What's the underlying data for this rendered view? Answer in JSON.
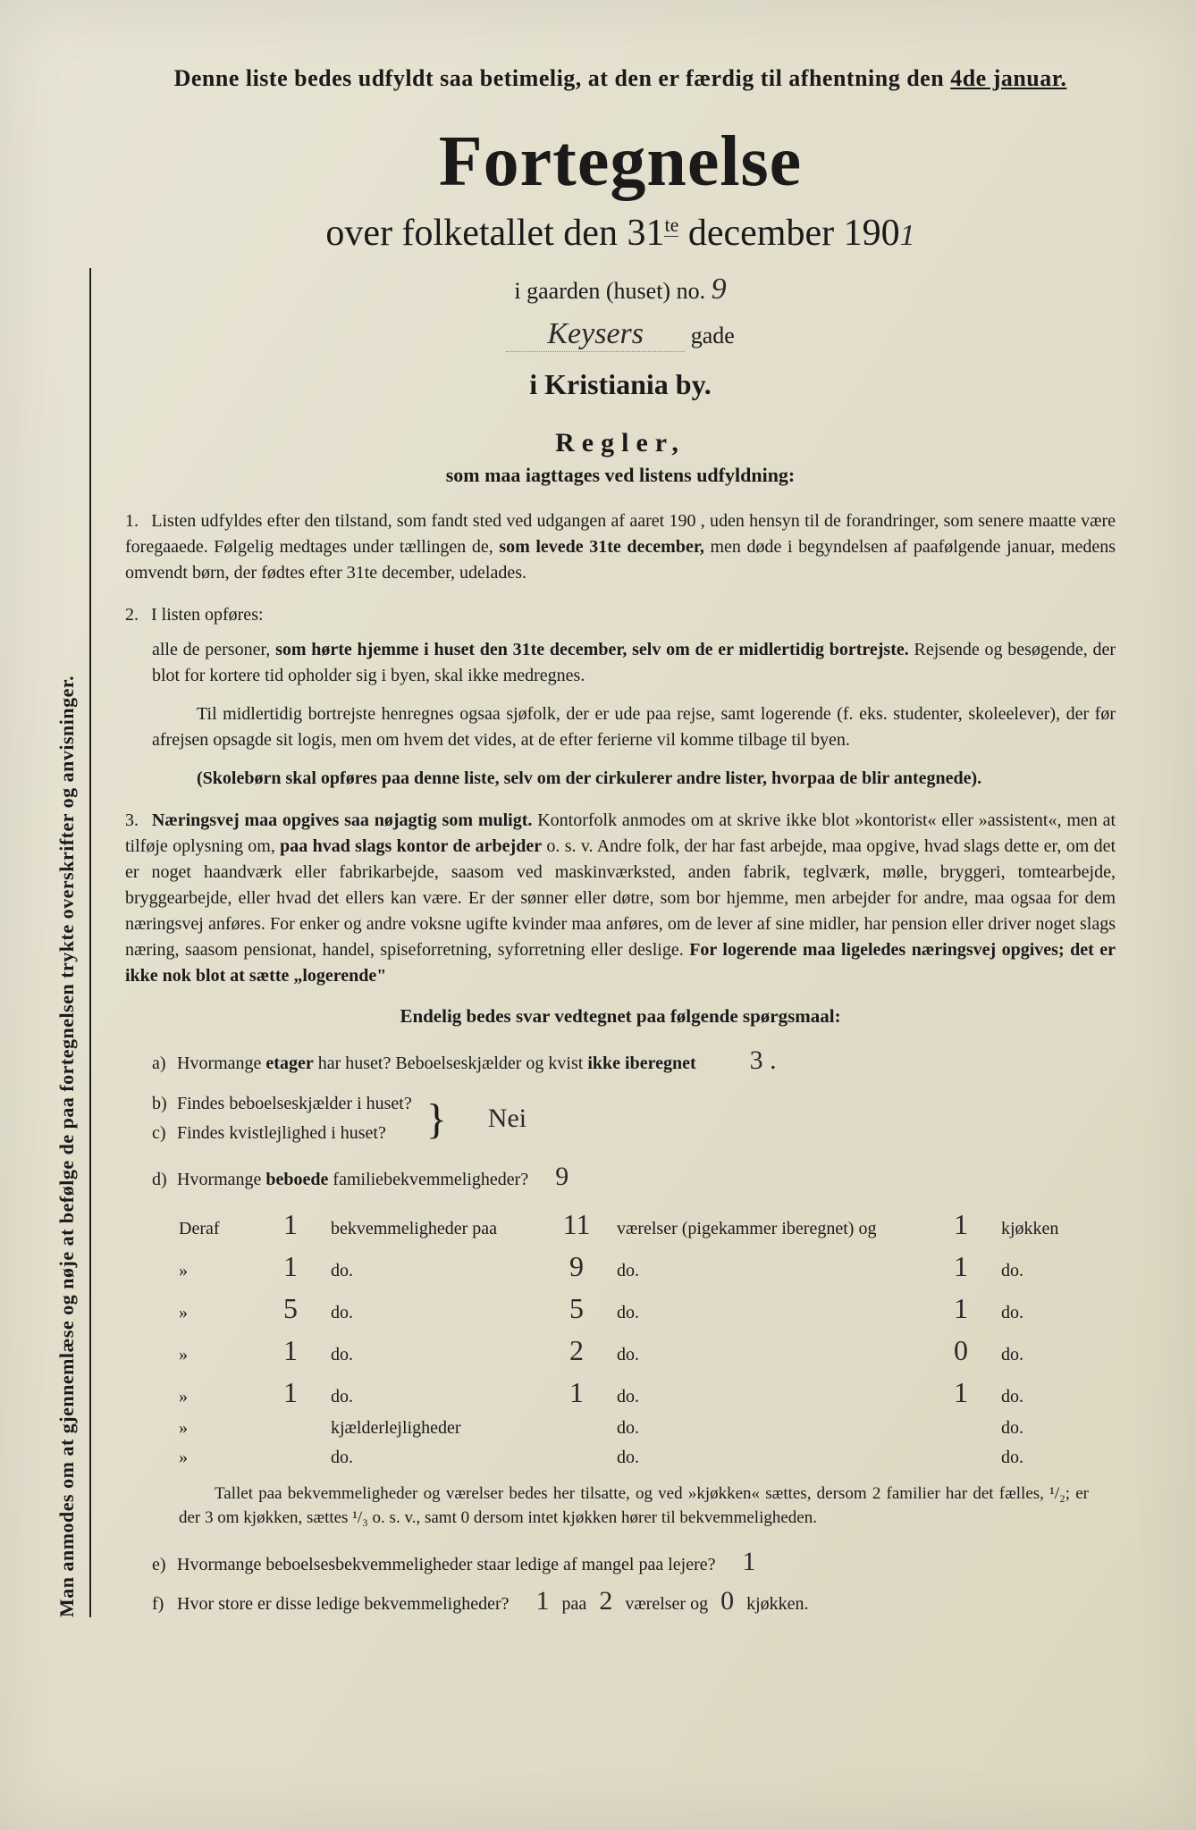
{
  "sidetext": "Man anmodes om at gjennemlæse og nøje at befølge de paa fortegnelsen trykte overskrifter og anvisninger.",
  "topnote_a": "Denne liste bedes udfyldt saa betimelig, at den er færdig til afhentning den ",
  "topnote_b": "4de januar.",
  "title": "Fortegnelse",
  "subtitle_a": "over folketallet den 31",
  "subtitle_sup": "te",
  "subtitle_b": " december 190",
  "subtitle_hw": "1",
  "gaarden_label": "i gaarden (huset) no.",
  "gaarden_no": "9",
  "gade_name": "Keysers",
  "gade_suffix": "gade",
  "city": "i Kristiania by.",
  "regler_title": "Regler,",
  "regler_sub": "som maa iagttages ved listens udfyldning:",
  "rule1_a": "Listen udfyldes efter den tilstand, som fandt sted ved udgangen af aaret 190    , uden hensyn til de forandringer, som senere maatte være foregaaede. Følgelig medtages under tællingen de, ",
  "rule1_b": "som levede 31te december,",
  "rule1_c": " men døde i begyndelsen af paafølgende januar, medens omvendt børn, der fødtes efter 31te december, udelades.",
  "rule2_head": "I listen opføres:",
  "rule2_a": "alle de personer, ",
  "rule2_b": "som hørte hjemme i huset den 31te december, selv om de er midlertidig bortrejste.",
  "rule2_c": " Rejsende og besøgende, der blot for kortere tid opholder sig i byen, skal ikke medregnes.",
  "rule2_p2": "Til midlertidig bortrejste henregnes ogsaa sjøfolk, der er ude paa rejse, samt logerende (f. eks. studenter, skoleelever), der før afrejsen opsagde sit logis, men om hvem det vides, at de efter ferierne vil komme tilbage til byen.",
  "rule2_p3": "(Skolebørn skal opføres paa denne liste, selv om der cirkulerer andre lister, hvorpaa de blir antegnede).",
  "rule3_a": "Næringsvej maa opgives saa nøjagtig som muligt.",
  "rule3_b": " Kontorfolk anmodes om at skrive ikke blot »kontorist« eller »assistent«, men at tilføje oplysning om, ",
  "rule3_c": "paa hvad slags kontor de arbejder",
  "rule3_d": " o. s. v. Andre folk, der har fast arbejde, maa opgive, hvad slags dette er, om det er noget haandværk eller fabrikarbejde, saasom ved maskinværksted, anden fabrik, teglværk, mølle, bryggeri, tomtearbejde, bryggearbejde, eller hvad det ellers kan være. Er der sønner eller døtre, som bor hjemme, men arbejder for andre, maa ogsaa for dem næringsvej anføres. For enker og andre voksne ugifte kvinder maa anføres, om de lever af sine midler, har pension eller driver noget slags næring, saasom pensionat, handel, spiseforretning, syforretning eller deslige. ",
  "rule3_e": "For logerende maa ligeledes næringsvej opgives; det er ikke nok blot at sætte „logerende\"",
  "questions_title": "Endelig bedes svar vedtegnet paa følgende spørgsmaal:",
  "qa_text": "Hvormange ",
  "qa_bold": "etager",
  "qa_text2": " har huset?  Beboelseskjælder og kvist ",
  "qa_bold2": "ikke iberegnet",
  "qa_ans": "3 .",
  "qb_text": "Findes beboelseskjælder i huset?",
  "qc_text": "Findes kvistlejlighed i huset?",
  "qbc_ans": "Nei",
  "qd_text": "Hvormange ",
  "qd_bold": "beboede",
  "qd_text2": " familiebekvemmeligheder?",
  "qd_ans": "9",
  "table_header": {
    "lead": "Deraf",
    "bekv": "bekvemmeligheder paa",
    "vaer": "værelser (pigekammer iberegnet) og",
    "kjok": "kjøkken"
  },
  "table_rows": [
    {
      "a": "1",
      "b": "",
      "c": "11",
      "d": "",
      "e": "1",
      "f": ""
    },
    {
      "a": "1",
      "b": "do.",
      "c": "9",
      "d": "do.",
      "e": "1",
      "f": "do."
    },
    {
      "a": "5",
      "b": "do.",
      "c": "5",
      "d": "do.",
      "e": "1",
      "f": "do."
    },
    {
      "a": "1",
      "b": "do.",
      "c": "2",
      "d": "do.",
      "e": "0",
      "f": "do."
    },
    {
      "a": "1",
      "b": "do.",
      "c": "1",
      "d": "do.",
      "e": "1",
      "f": "do."
    },
    {
      "a": "",
      "b": "kjælderlejligheder",
      "c": "",
      "d": "do.",
      "e": "",
      "f": "do."
    },
    {
      "a": "",
      "b": "do.",
      "c": "",
      "d": "do.",
      "e": "",
      "f": "do."
    }
  ],
  "footnote": "Tallet paa bekvemmeligheder og værelser bedes her tilsatte, og ved »kjøkken« sættes, dersom 2 familier har det fælles, ¹/₂; er der 3 om kjøkken, sættes ¹/₃ o. s. v., samt 0 dersom intet kjøkken hører til bekvemmeligheden.",
  "qe_text": "Hvormange beboelsesbekvemmeligheder staar ledige af mangel paa lejere?",
  "qe_ans": "1",
  "qf_text": "Hvor store er disse ledige bekvemmeligheder?",
  "qf_a": "1",
  "qf_mid1": "paa",
  "qf_b": "2",
  "qf_mid2": "værelser og",
  "qf_c": "0",
  "qf_end": "kjøkken."
}
